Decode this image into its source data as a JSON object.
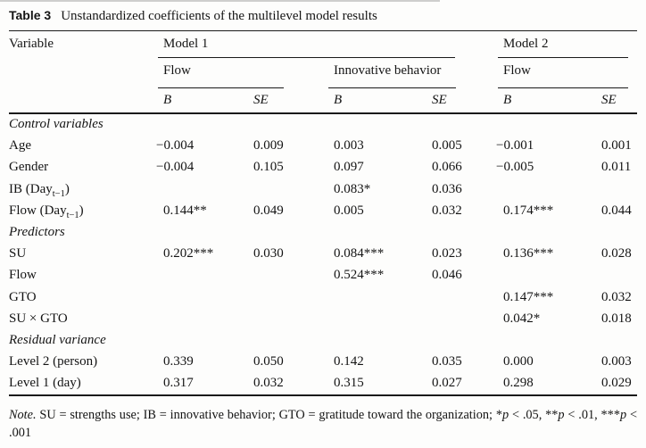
{
  "caption": {
    "label": "Table 3",
    "text": "Unstandardized coefficients of the multilevel model results"
  },
  "header": {
    "variable": "Variable",
    "model1": "Model 1",
    "model2": "Model 2",
    "flow1": "Flow",
    "innovative_behavior": "Innovative behavior",
    "flow2": "Flow",
    "b": "B",
    "se": "SE"
  },
  "rows": [
    {
      "type": "section",
      "label": "Control variables"
    },
    {
      "type": "data",
      "label_pre": "Age",
      "cells": [
        "−0.004",
        "0.009",
        "0.003",
        "0.005",
        "−0.001",
        "0.001"
      ]
    },
    {
      "type": "data",
      "label_pre": "Gender",
      "cells": [
        "−0.004",
        "0.105",
        "0.097",
        "0.066",
        "−0.005",
        "0.011"
      ]
    },
    {
      "type": "data",
      "label_pre": "IB (Day",
      "label_sub": "t−1",
      "label_post": ")",
      "cells": [
        "",
        "",
        "0.083*",
        "0.036",
        "",
        ""
      ]
    },
    {
      "type": "data",
      "label_pre": "Flow (Day",
      "label_sub": "t−1",
      "label_post": ")",
      "cells": [
        "0.144**",
        "0.049",
        "0.005",
        "0.032",
        "0.174***",
        "0.044"
      ]
    },
    {
      "type": "section",
      "label": "Predictors"
    },
    {
      "type": "data",
      "label_pre": "SU",
      "cells": [
        "0.202***",
        "0.030",
        "0.084***",
        "0.023",
        "0.136***",
        "0.028"
      ]
    },
    {
      "type": "data",
      "label_pre": "Flow",
      "cells": [
        "",
        "",
        "0.524***",
        "0.046",
        "",
        ""
      ]
    },
    {
      "type": "data",
      "label_pre": "GTO",
      "cells": [
        "",
        "",
        "",
        "",
        "0.147***",
        "0.032"
      ]
    },
    {
      "type": "data",
      "label_pre": "SU × GTO",
      "cells": [
        "",
        "",
        "",
        "",
        "0.042*",
        "0.018"
      ]
    },
    {
      "type": "section",
      "label": "Residual variance"
    },
    {
      "type": "data",
      "label_pre": "Level 2 (person)",
      "cells": [
        "0.339",
        "0.050",
        "0.142",
        "0.035",
        "0.000",
        "0.003"
      ]
    },
    {
      "type": "data",
      "label_pre": "Level 1 (day)",
      "cells": [
        "0.317",
        "0.032",
        "0.315",
        "0.027",
        "0.298",
        "0.029"
      ]
    }
  ],
  "note": {
    "label": "Note.",
    "seg1": " SU = strengths use; IB = innovative behavior; GTO = gratitude toward the organization; *",
    "p": "p",
    "seg2": " < .05, **",
    "seg3": " < .01, ***",
    "seg4": " < .001"
  }
}
